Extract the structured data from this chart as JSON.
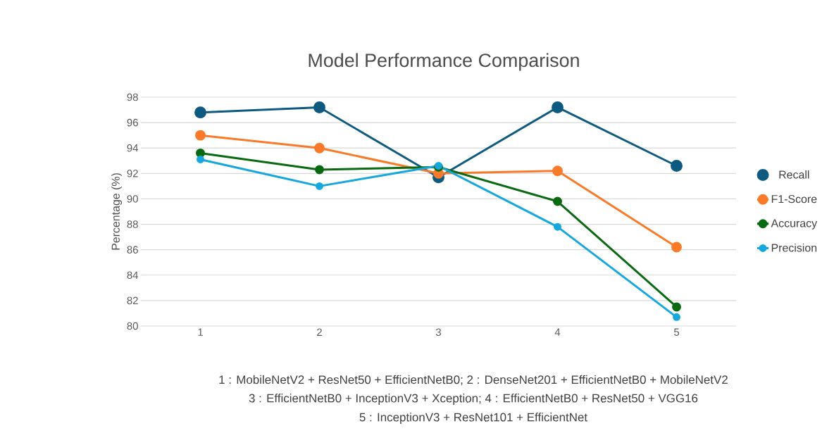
{
  "chart_data": {
    "type": "line",
    "title": "Model Performance Comparison",
    "ylabel": "Percentage (%)",
    "categories": [
      "1",
      "2",
      "3",
      "4",
      "5"
    ],
    "series": [
      {
        "name": "Recall",
        "color": "#0e5a80",
        "values": [
          96.8,
          97.2,
          91.7,
          97.2,
          92.6
        ]
      },
      {
        "name": "F1-Score",
        "color": "#f97a2a",
        "values": [
          95.0,
          94.0,
          92.0,
          92.2,
          86.2
        ]
      },
      {
        "name": "Accuracy",
        "color": "#0a6a12",
        "values": [
          93.6,
          92.3,
          92.5,
          89.8,
          81.5
        ]
      },
      {
        "name": "Precision",
        "color": "#16a8dc",
        "values": [
          93.1,
          91.0,
          92.6,
          87.8,
          80.7
        ]
      }
    ],
    "ylim": [
      80,
      98
    ],
    "yticks": [
      80,
      82,
      84,
      86,
      88,
      90,
      92,
      94,
      96,
      98
    ],
    "grid": "y",
    "legend": "right",
    "marker": "circle",
    "line_style": "solid",
    "annotations": [
      "1 : MobileNetV2 + ResNet50 + EfficientNetB0;  2 : DenseNet201 + EfficientNetB0 + MobileNetV2",
      "3 : EfficientNetB0 + InceptionV3 + Xception;  4 : EfficientNetB0 + ResNet50 + VGG16",
      "5 : InceptionV3 + ResNet101 + EfficientNet"
    ]
  }
}
